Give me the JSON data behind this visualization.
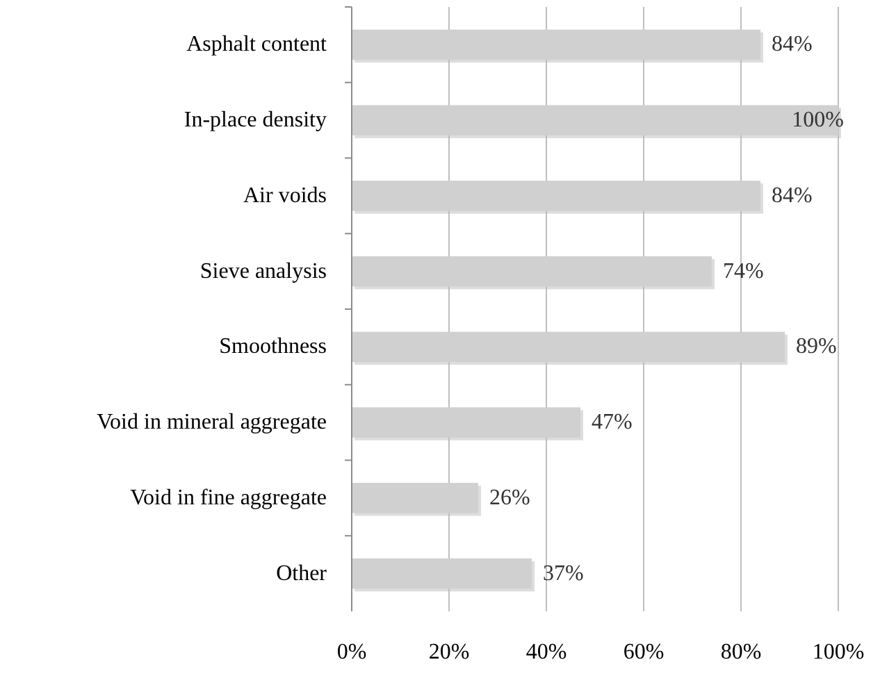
{
  "chart_data": {
    "type": "bar",
    "orientation": "horizontal",
    "categories": [
      "Asphalt content",
      "In-place density",
      "Air voids",
      "Sieve analysis",
      "Smoothness",
      "Void in mineral aggregate",
      "Void in fine aggregate",
      "Other"
    ],
    "values": [
      84,
      100,
      84,
      74,
      89,
      47,
      26,
      37
    ],
    "value_labels": [
      "84%",
      "100%",
      "84%",
      "74%",
      "89%",
      "47%",
      "26%",
      "37%"
    ],
    "color": "#d0d0d0",
    "xlim": [
      0,
      100
    ],
    "xticks": [
      {
        "value": 0,
        "label": "0%"
      },
      {
        "value": 20,
        "label": "20%"
      },
      {
        "value": 40,
        "label": "40%"
      },
      {
        "value": 60,
        "label": "60%"
      },
      {
        "value": 80,
        "label": "80%"
      },
      {
        "value": 100,
        "label": "100%"
      }
    ],
    "grid": "x"
  }
}
